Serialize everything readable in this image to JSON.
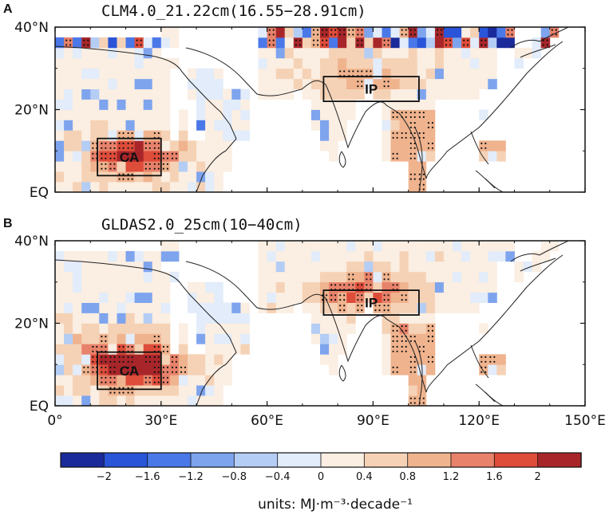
{
  "panels": [
    {
      "letter": "A",
      "title": "CLM4.0_21.22cm(16.55−28.91cm)",
      "regions": [
        "CA",
        "IP"
      ]
    },
    {
      "letter": "B",
      "title": "GLDAS2.0_25cm(10−40cm)",
      "regions": [
        "CA",
        "IP"
      ]
    }
  ],
  "axes": {
    "lat_labels": [
      "40°N",
      "20°N",
      "EQ"
    ],
    "lat_values": [
      40,
      20,
      0
    ],
    "lon_labels": [
      "0°",
      "30°E",
      "60°E",
      "90°E",
      "120°E",
      "150°E"
    ],
    "lon_values": [
      0,
      30,
      60,
      90,
      120,
      150
    ],
    "lon_range": [
      0,
      150
    ],
    "lat_range": [
      0,
      40
    ]
  },
  "regions": {
    "CA": {
      "lon": [
        12,
        30
      ],
      "lat": [
        4,
        13
      ]
    },
    "IP": {
      "lon": [
        76,
        103
      ],
      "lat": [
        22,
        28
      ]
    }
  },
  "colorbar": {
    "tick_labels": [
      "−2",
      "−1.6",
      "−1.2",
      "−0.8",
      "−0.4",
      "0",
      "0.4",
      "0.8",
      "1.2",
      "1.6",
      "2"
    ],
    "colors": [
      "#1b2a9a",
      "#2a55d8",
      "#4a78e8",
      "#7ea4ee",
      "#b4cdf4",
      "#e2ecfa",
      "#fbeee2",
      "#f5d2b6",
      "#efb38e",
      "#e8826a",
      "#de4c3a",
      "#a8262a"
    ],
    "units_label": "units: MJ·m⁻³·decade⁻¹"
  }
}
